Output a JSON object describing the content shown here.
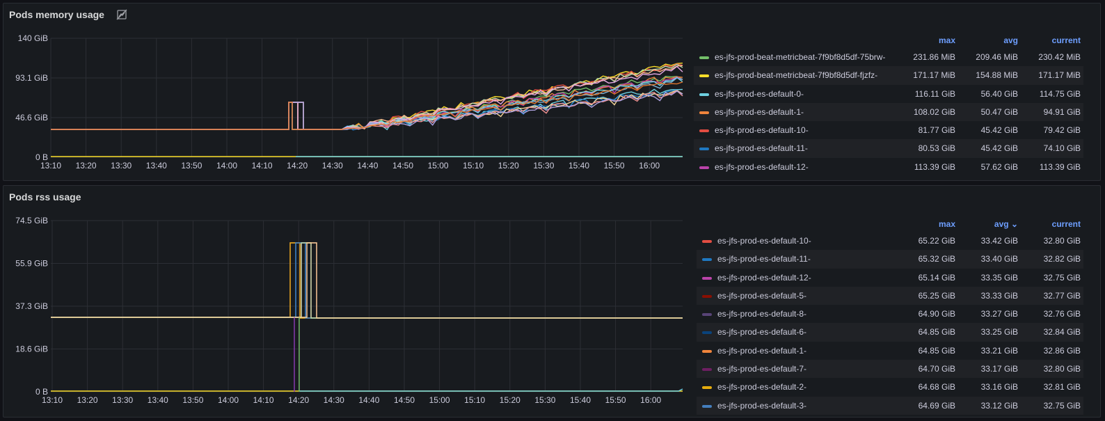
{
  "panels": [
    {
      "title": "Pods memory usage",
      "title_icon": "panel-links-icon",
      "y_ticks": [
        "140 GiB",
        "93.1 GiB",
        "46.6 GiB",
        "0 B"
      ],
      "x_ticks": [
        "13:10",
        "13:20",
        "13:30",
        "13:40",
        "13:50",
        "14:00",
        "14:10",
        "14:20",
        "14:30",
        "14:40",
        "14:50",
        "15:00",
        "15:10",
        "15:20",
        "15:30",
        "15:40",
        "15:50",
        "16:00"
      ],
      "legend_headers": {
        "max": "max",
        "avg": "avg",
        "current": "current"
      },
      "legend": [
        {
          "name": "es-jfs-prod-beat-metricbeat-7f9bf8d5df-75brw-",
          "color": "#73bf69",
          "max": "231.86 MiB",
          "avg": "209.46 MiB",
          "current": "230.42 MiB"
        },
        {
          "name": "es-jfs-prod-beat-metricbeat-7f9bf8d5df-fjzfz-",
          "color": "#fade2a",
          "max": "171.17 MiB",
          "avg": "154.88 MiB",
          "current": "171.17 MiB"
        },
        {
          "name": "es-jfs-prod-es-default-0-",
          "color": "#6ed0e0",
          "max": "116.11 GiB",
          "avg": "56.40 GiB",
          "current": "114.75 GiB"
        },
        {
          "name": "es-jfs-prod-es-default-1-",
          "color": "#ef843c",
          "max": "108.02 GiB",
          "avg": "50.47 GiB",
          "current": "94.91 GiB"
        },
        {
          "name": "es-jfs-prod-es-default-10-",
          "color": "#e24d42",
          "max": "81.77 GiB",
          "avg": "45.42 GiB",
          "current": "79.42 GiB"
        },
        {
          "name": "es-jfs-prod-es-default-11-",
          "color": "#1f78c1",
          "max": "80.53 GiB",
          "avg": "45.42 GiB",
          "current": "74.10 GiB"
        },
        {
          "name": "es-jfs-prod-es-default-12-",
          "color": "#ba43a9",
          "max": "113.39 GiB",
          "avg": "57.62 GiB",
          "current": "113.39 GiB"
        }
      ]
    },
    {
      "title": "Pods rss usage",
      "y_ticks": [
        "74.5 GiB",
        "55.9 GiB",
        "37.3 GiB",
        "18.6 GiB",
        "0 B"
      ],
      "x_ticks": [
        "13:10",
        "13:20",
        "13:30",
        "13:40",
        "13:50",
        "14:00",
        "14:10",
        "14:20",
        "14:30",
        "14:40",
        "14:50",
        "15:00",
        "15:10",
        "15:20",
        "15:30",
        "15:40",
        "15:50",
        "16:00"
      ],
      "legend_headers": {
        "max": "max",
        "avg": "avg",
        "current": "current"
      },
      "sort_icon": "chevron-down-icon",
      "legend": [
        {
          "name": "es-jfs-prod-es-default-10-",
          "color": "#e24d42",
          "max": "65.22 GiB",
          "avg": "33.42 GiB",
          "current": "32.80 GiB"
        },
        {
          "name": "es-jfs-prod-es-default-11-",
          "color": "#1f78c1",
          "max": "65.32 GiB",
          "avg": "33.40 GiB",
          "current": "32.82 GiB"
        },
        {
          "name": "es-jfs-prod-es-default-12-",
          "color": "#ba43a9",
          "max": "65.14 GiB",
          "avg": "33.35 GiB",
          "current": "32.75 GiB"
        },
        {
          "name": "es-jfs-prod-es-default-5-",
          "color": "#890f02",
          "max": "65.25 GiB",
          "avg": "33.33 GiB",
          "current": "32.77 GiB"
        },
        {
          "name": "es-jfs-prod-es-default-8-",
          "color": "#584477",
          "max": "64.90 GiB",
          "avg": "33.27 GiB",
          "current": "32.76 GiB"
        },
        {
          "name": "es-jfs-prod-es-default-6-",
          "color": "#0a437c",
          "max": "64.85 GiB",
          "avg": "33.25 GiB",
          "current": "32.84 GiB"
        },
        {
          "name": "es-jfs-prod-es-default-1-",
          "color": "#ef843c",
          "max": "64.85 GiB",
          "avg": "33.21 GiB",
          "current": "32.86 GiB"
        },
        {
          "name": "es-jfs-prod-es-default-7-",
          "color": "#6d1f62",
          "max": "64.70 GiB",
          "avg": "33.17 GiB",
          "current": "32.80 GiB"
        },
        {
          "name": "es-jfs-prod-es-default-2-",
          "color": "#e5ac0e",
          "max": "64.68 GiB",
          "avg": "33.16 GiB",
          "current": "32.81 GiB"
        },
        {
          "name": "es-jfs-prod-es-default-3-",
          "color": "#447ebc",
          "max": "64.69 GiB",
          "avg": "33.12 GiB",
          "current": "32.75 GiB"
        }
      ]
    }
  ]
}
